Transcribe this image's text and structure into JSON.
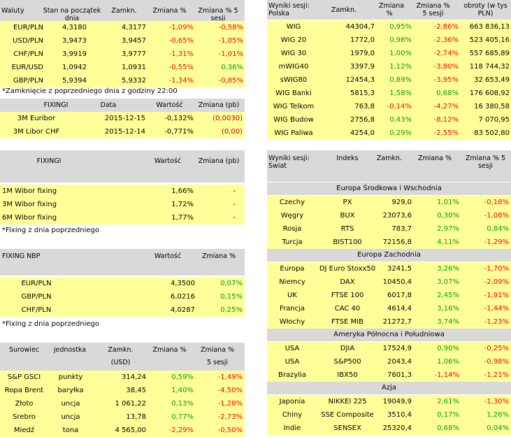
{
  "currencies": {
    "headers": [
      "Waluty",
      "Stan na początek dnia",
      "Zamkn.",
      "Zmiana %",
      "Zmiana % 5 sesji"
    ],
    "rows": [
      [
        "EUR/PLN",
        "4,3180",
        "4,3177",
        "-1,09%",
        "-0,58%"
      ],
      [
        "USD/PLN",
        "3,9473",
        "3,9457",
        "-0,65%",
        "-1,05%"
      ],
      [
        "CHF/PLN",
        "3,9919",
        "3,9777",
        "-1,31%",
        "-1,01%"
      ],
      [
        "EUR/USD",
        "1,0942",
        "1,0931",
        "-0,55%",
        "0,36%"
      ],
      [
        "GBP/PLN",
        "5,9394",
        "5,9332",
        "-1,34%",
        "-0,85%"
      ]
    ],
    "note": "*Zamknięcie z poprzedniego dnia z godziny 22:00"
  },
  "fixing_libor": {
    "headers": [
      "FIXINGI",
      "Data",
      "Wartość",
      "Zmiana (pb)"
    ],
    "rows": [
      [
        "3M Euribor",
        "2015-12-15",
        "-0,132%",
        "(0,0030)"
      ],
      [
        "3M Libor CHF",
        "2015-12-14",
        "-0,771%",
        "(0,00)"
      ]
    ]
  },
  "fixing_wibor": {
    "headers": [
      "FIXINGI",
      "Wartość",
      "Zmiana (pb)"
    ],
    "rows": [
      [
        "1M Wibor fixing",
        "1,66%",
        "-"
      ],
      [
        "3M Wibor fixing",
        "1,72%",
        "-"
      ],
      [
        "6M Wibor fixing",
        "1,77%",
        "-"
      ]
    ],
    "note": "*Fixing z dnia poprzedniego"
  },
  "fixing_nbp": {
    "headers": [
      "FIXING NBP",
      "Wartość",
      "Zmiana %"
    ],
    "rows": [
      [
        "EUR/PLN",
        "4,3500",
        "0,07%"
      ],
      [
        "GBP/PLN",
        "6,0216",
        "0,15%"
      ],
      [
        "CHF/PLN",
        "4,0287",
        "0,25%"
      ]
    ],
    "note": "*Fixing z dnia poprzedniego"
  },
  "commodities": {
    "headers": [
      "Surowiec",
      "jednostka",
      "Zamkn.",
      "Zmiana %",
      "Zmiana %"
    ],
    "subheaders": [
      "(USD)",
      "5 sesji"
    ],
    "rows": [
      [
        "S&P GSCI",
        "punkty",
        "314,24",
        "0,59%",
        "-1,49%"
      ],
      [
        "Ropa Brent",
        "baryłka",
        "38,45",
        "1,40%",
        "-4,50%"
      ],
      [
        "Złoto",
        "uncja",
        "1 061,22",
        "0,13%",
        "-1,28%"
      ],
      [
        "Srebro",
        "uncja",
        "13,78",
        "0,77%",
        "-2,73%"
      ],
      [
        "Miedź",
        "tona",
        "4 565,00",
        "-2,29%",
        "-0,50%"
      ]
    ]
  },
  "poland": {
    "headers": [
      "Wyniki sesji: Polska",
      "Zamkn.",
      "Zmiana %",
      "Zmiana % 5 sesji",
      "obroty (w tys PLN)"
    ],
    "rows": [
      [
        "WIG",
        "44304,7",
        "0,95%",
        "-2,86%",
        "663 836,13"
      ],
      [
        "WIG 20",
        "1772,0",
        "0,98%",
        "-2,36%",
        "523 405,16"
      ],
      [
        "WIG 30",
        "1979,0",
        "1,00%",
        "-2,74%",
        "557 685,89"
      ],
      [
        "mWIG40",
        "3397,9",
        "1,12%",
        "-3,80%",
        "118 744,32"
      ],
      [
        "sWIG80",
        "12454,3",
        "0,89%",
        "-3,95%",
        "32 653,49"
      ],
      [
        "WIG Banki",
        "5815,3",
        "1,58%",
        "0,68%",
        "176 608,92"
      ],
      [
        "WIG Telkom",
        "763,8",
        "-0,14%",
        "-4,27%",
        "16 380,58"
      ],
      [
        "WIG Budow",
        "2756,8",
        "0,43%",
        "-8,12%",
        "7 070,95"
      ],
      [
        "WIG Paliwa",
        "4254,0",
        "0,29%",
        "-2,55%",
        "83 502,80"
      ]
    ]
  },
  "world": {
    "headers": [
      "Wyniki sesji: Świat",
      "Indeks",
      "Zamkn.",
      "Zmiana %",
      "Zmiana % 5 sesji"
    ],
    "groups": [
      {
        "name": "Europa Środkowa i Wschodnia",
        "rows": [
          [
            "Czechy",
            "PX",
            "929,0",
            "1,01%",
            "-0,18%"
          ],
          [
            "Węgry",
            "BUX",
            "23073,6",
            "0,30%",
            "-1,08%"
          ],
          [
            "Rosja",
            "RTS",
            "783,7",
            "2,97%",
            "0,84%"
          ],
          [
            "Turcja",
            "BIST100",
            "72156,8",
            "4,11%",
            "-1,29%"
          ]
        ]
      },
      {
        "name": "Europa Zachodnia",
        "rows": [
          [
            "Europa",
            "DJ Euro Stoxx50",
            "3241,5",
            "3,26%",
            "-1,70%"
          ],
          [
            "Niemcy",
            "DAX",
            "10450,4",
            "3,07%",
            "-2,09%"
          ],
          [
            "UK",
            "FTSE 100",
            "6017,8",
            "2,45%",
            "-1,91%"
          ],
          [
            "Francja",
            "CAC 40",
            "4614,4",
            "3,16%",
            "-1,44%"
          ],
          [
            "Włochy",
            "FTSE MIB",
            "21272,7",
            "3,74%",
            "-1,23%"
          ]
        ]
      },
      {
        "name": "Ameryka Północna i Południowa",
        "rows": [
          [
            "USA",
            "DJIA",
            "17524,9",
            "0,90%",
            "-0,25%"
          ],
          [
            "USA",
            "S&P500",
            "2043,4",
            "1,06%",
            "-0,98%"
          ],
          [
            "Brazylia",
            "IBX50",
            "7601,3",
            "-1,14%",
            "-1,21%"
          ]
        ]
      },
      {
        "name": "Azja",
        "rows": [
          [
            "Japonia",
            "NIKKEI 225",
            "19049,9",
            "2,61%",
            "-1,30%"
          ],
          [
            "Chiny",
            "SSE Composite",
            "3510,4",
            "0,17%",
            "1,26%"
          ],
          [
            "Indie",
            "SENSEX",
            "25320,4",
            "0,68%",
            "0,04%"
          ]
        ]
      }
    ]
  }
}
